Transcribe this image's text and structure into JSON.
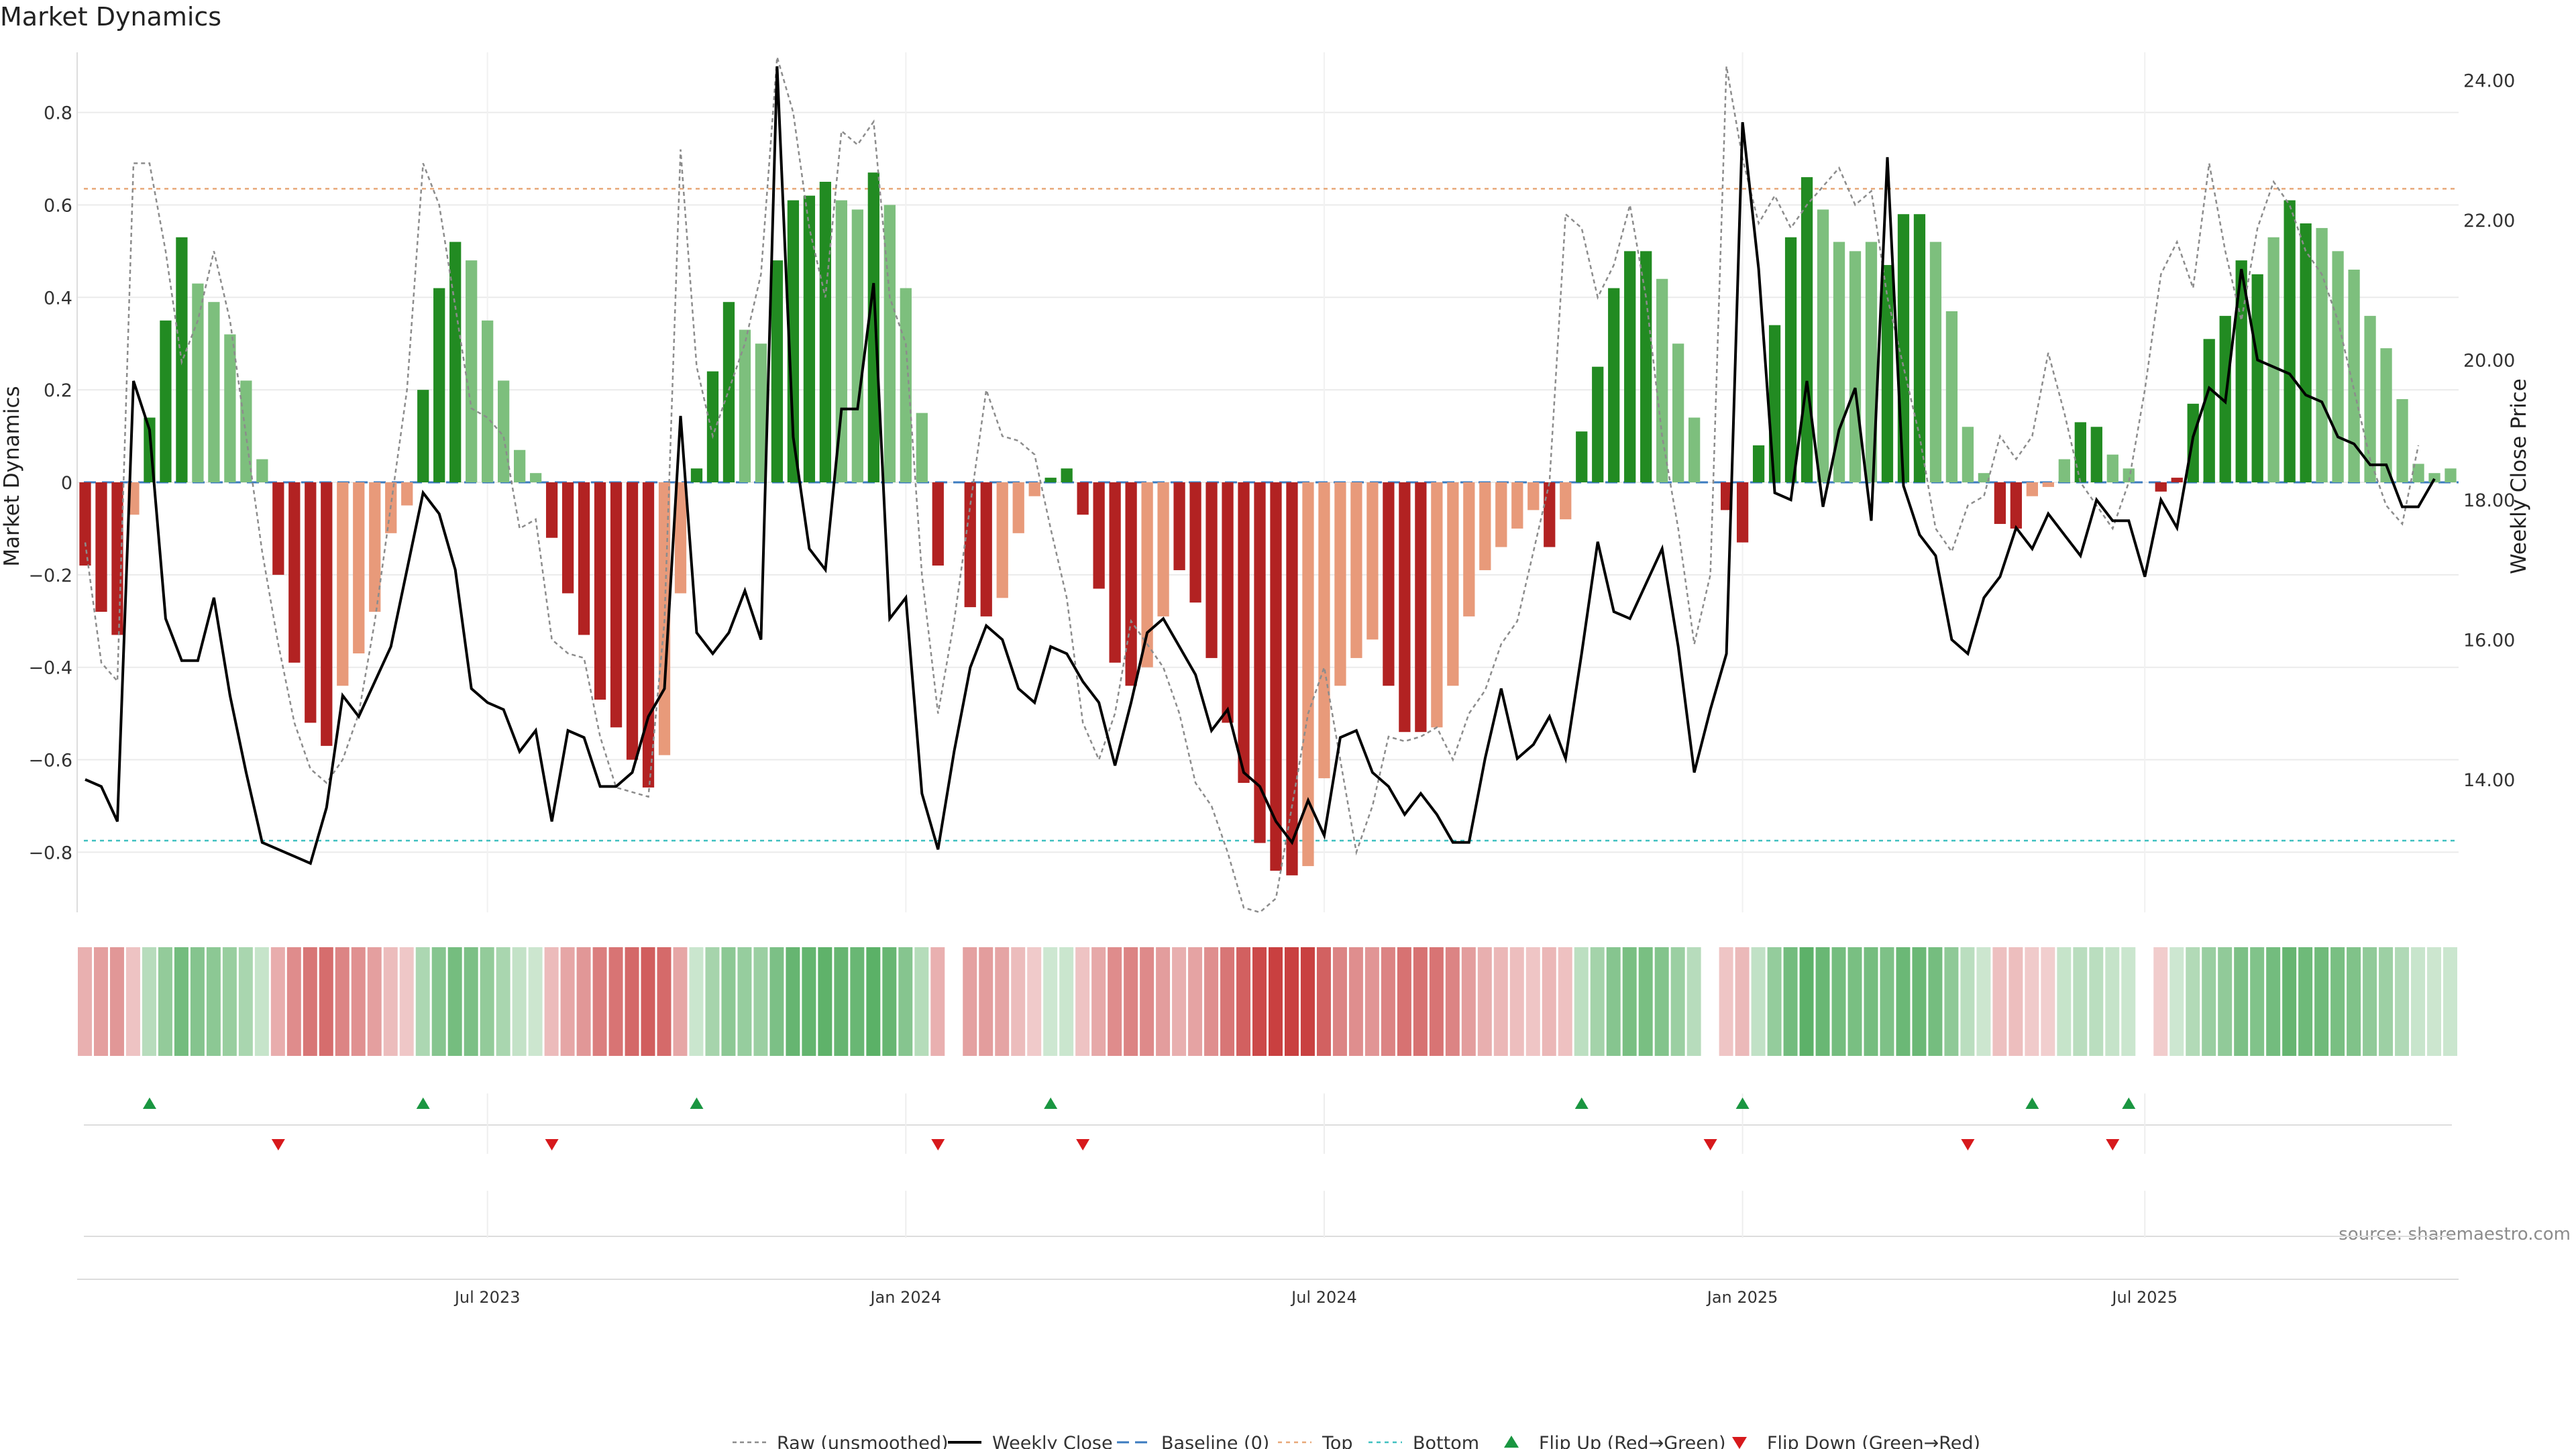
{
  "chart_data": {
    "type": "bar",
    "title": "Market Dynamics",
    "ylabel": "Market Dynamics",
    "y2label": "Weekly Close Price",
    "source": "source: sharemaestro.com",
    "ylim": [
      -0.93,
      0.93
    ],
    "y2lim": [
      12.1,
      24.4
    ],
    "yticks": [
      -0.8,
      -0.6,
      -0.4,
      -0.2,
      0,
      0.2,
      0.4,
      0.6,
      0.8
    ],
    "ytick_labels": [
      "−0.8",
      "−0.6",
      "−0.4",
      "−0.2",
      "0",
      "0.2",
      "0.4",
      "0.6",
      "0.8"
    ],
    "y2ticks": [
      14,
      16,
      18,
      20,
      22,
      24
    ],
    "y2tick_labels": [
      "14.00",
      "16.00",
      "18.00",
      "20.00",
      "22.00",
      "24.00"
    ],
    "xticks": [
      25,
      51,
      77,
      103,
      128
    ],
    "xtick_labels": [
      "Jul 2023",
      "Jan 2024",
      "Jul 2024",
      "Jan 2025",
      "Jul 2025"
    ],
    "top_level": 0.635,
    "bottom_level": -0.775,
    "grid": true,
    "legend_position": "bottom-center",
    "legend": [
      "Raw (unsmoothed)",
      "Weekly Close",
      "Baseline (0)",
      "Top",
      "Bottom",
      "Flip Up (Red→Green)",
      "Flip Down (Green→Red)"
    ],
    "colors": {
      "strong_green": "#228b22",
      "light_green": "#7dbf7d",
      "strong_red": "#b22222",
      "light_red": "#e89a7a",
      "raw": "#8c8c8c",
      "close": "#000000",
      "baseline": "#3b7bbf",
      "top": "#e8a878",
      "bottom": "#40c0c0",
      "flip_up": "#1a9641",
      "flip_down": "#d7191c"
    },
    "dynamics": [
      -0.18,
      -0.28,
      -0.33,
      -0.07,
      0.14,
      0.35,
      0.53,
      0.43,
      0.39,
      0.32,
      0.22,
      0.05,
      -0.2,
      -0.39,
      -0.52,
      -0.57,
      -0.44,
      -0.37,
      -0.28,
      -0.11,
      -0.05,
      0.2,
      0.42,
      0.52,
      0.48,
      0.35,
      0.22,
      0.07,
      0.02,
      -0.12,
      -0.24,
      -0.33,
      -0.47,
      -0.53,
      -0.6,
      -0.66,
      -0.59,
      -0.24,
      0.03,
      0.24,
      0.39,
      0.33,
      0.3,
      0.48,
      0.61,
      0.62,
      0.65,
      0.61,
      0.59,
      0.67,
      0.6,
      0.42,
      0.15,
      -0.18,
      0,
      -0.27,
      -0.29,
      -0.25,
      -0.11,
      -0.03,
      0.01,
      0.03,
      -0.07,
      -0.23,
      -0.39,
      -0.44,
      -0.4,
      -0.29,
      -0.19,
      -0.26,
      -0.38,
      -0.52,
      -0.65,
      -0.78,
      -0.84,
      -0.85,
      -0.83,
      -0.64,
      -0.44,
      -0.38,
      -0.34,
      -0.44,
      -0.54,
      -0.54,
      -0.53,
      -0.44,
      -0.29,
      -0.19,
      -0.14,
      -0.1,
      -0.06,
      -0.14,
      -0.08,
      0.11,
      0.25,
      0.42,
      0.5,
      0.5,
      0.44,
      0.3,
      0.14,
      0,
      -0.06,
      -0.13,
      0.08,
      0.34,
      0.53,
      0.66,
      0.59,
      0.52,
      0.5,
      0.52,
      0.47,
      0.58,
      0.58,
      0.52,
      0.37,
      0.12,
      0.02,
      -0.09,
      -0.1,
      -0.03,
      -0.01,
      0.05,
      0.13,
      0.12,
      0.06,
      0.03,
      0,
      -0.02,
      0.01,
      0.17,
      0.31,
      0.36,
      0.48,
      0.45,
      0.53,
      0.61,
      0.56,
      0.55,
      0.5,
      0.46,
      0.36,
      0.29,
      0.18,
      0.04,
      0.02,
      0.03
    ],
    "raw": [
      -0.13,
      -0.39,
      -0.43,
      0.69,
      0.69,
      0.5,
      0.26,
      0.35,
      0.5,
      0.35,
      0.1,
      -0.15,
      -0.35,
      -0.52,
      -0.62,
      -0.65,
      -0.6,
      -0.5,
      -0.3,
      -0.05,
      0.2,
      0.69,
      0.6,
      0.38,
      0.16,
      0.14,
      0.1,
      -0.1,
      -0.08,
      -0.34,
      -0.37,
      -0.38,
      -0.55,
      -0.66,
      -0.67,
      -0.68,
      -0.3,
      0.72,
      0.25,
      0.1,
      0.2,
      0.3,
      0.45,
      0.92,
      0.8,
      0.55,
      0.4,
      0.76,
      0.73,
      0.78,
      0.4,
      0.3,
      -0.2,
      -0.5,
      -0.3,
      -0.05,
      0.2,
      0.1,
      0.09,
      0.06,
      -0.1,
      -0.25,
      -0.52,
      -0.6,
      -0.5,
      -0.3,
      -0.35,
      -0.4,
      -0.5,
      -0.65,
      -0.7,
      -0.8,
      -0.92,
      -0.93,
      -0.9,
      -0.7,
      -0.5,
      -0.4,
      -0.6,
      -0.8,
      -0.7,
      -0.55,
      -0.56,
      -0.55,
      -0.53,
      -0.6,
      -0.5,
      -0.45,
      -0.35,
      -0.3,
      -0.15,
      0.0,
      0.58,
      0.55,
      0.4,
      0.47,
      0.6,
      0.4,
      0.1,
      -0.1,
      -0.35,
      -0.2,
      0.9,
      0.7,
      0.56,
      0.62,
      0.55,
      0.6,
      0.64,
      0.68,
      0.6,
      0.63,
      0.4,
      0.25,
      0.1,
      -0.1,
      -0.15,
      -0.05,
      -0.03,
      0.1,
      0.05,
      0.1,
      0.28,
      0.15,
      0.0,
      -0.05,
      -0.1,
      0.0,
      0.2,
      0.45,
      0.52,
      0.42,
      0.69,
      0.5,
      0.35,
      0.55,
      0.65,
      0.6,
      0.5,
      0.45,
      0.35,
      0.2,
      0.05,
      -0.05,
      -0.09,
      0.08
    ],
    "close": [
      14,
      13.9,
      13.4,
      19.7,
      19,
      16.3,
      15.7,
      15.7,
      16.6,
      15.2,
      14.1,
      13.1,
      13,
      12.9,
      12.8,
      13.6,
      15.2,
      14.9,
      15.4,
      15.9,
      17,
      18.1,
      17.8,
      17,
      15.3,
      15.1,
      15,
      14.4,
      14.7,
      13.4,
      14.7,
      14.6,
      13.9,
      13.9,
      14.1,
      14.9,
      15.3,
      19.2,
      16.1,
      15.8,
      16.1,
      16.7,
      16,
      24.2,
      18.9,
      17.3,
      17,
      19.3,
      19.3,
      21.1,
      16.3,
      16.6,
      13.8,
      13,
      14.4,
      15.6,
      16.2,
      16,
      15.3,
      15.1,
      15.9,
      15.8,
      15.4,
      15.1,
      14.2,
      15.1,
      16.1,
      16.3,
      15.9,
      15.5,
      14.7,
      15,
      14.1,
      13.9,
      13.4,
      13.1,
      13.7,
      13.2,
      14.6,
      14.7,
      14.1,
      13.9,
      13.5,
      13.8,
      13.5,
      13.1,
      13.1,
      14.3,
      15.3,
      14.3,
      14.5,
      14.9,
      14.3,
      15.8,
      17.4,
      16.4,
      16.3,
      16.8,
      17.3,
      15.9,
      14.1,
      15,
      15.8,
      23.4,
      21.3,
      18.1,
      18,
      19.7,
      17.9,
      19,
      19.6,
      17.7,
      22.9,
      18.2,
      17.5,
      17.2,
      16,
      15.8,
      16.6,
      16.9,
      17.6,
      17.3,
      17.8,
      17.5,
      17.2,
      18.0,
      17.7,
      17.7,
      16.9,
      18.0,
      17.6,
      18.9,
      19.6,
      19.4,
      21.3,
      20.0,
      19.9,
      19.8,
      19.5,
      19.4,
      18.9,
      18.8,
      18.5,
      18.5,
      17.9,
      17.9,
      18.3
    ],
    "bar_style": [
      "dr",
      "dr",
      "dr",
      "lr",
      "dg",
      "dg",
      "dg",
      "lg",
      "lg",
      "lg",
      "lg",
      "lg",
      "dr",
      "dr",
      "dr",
      "dr",
      "lr",
      "lr",
      "lr",
      "lr",
      "lr",
      "dg",
      "dg",
      "dg",
      "lg",
      "lg",
      "lg",
      "lg",
      "lg",
      "dr",
      "dr",
      "dr",
      "dr",
      "dr",
      "dr",
      "dr",
      "lr",
      "lr",
      "dg",
      "dg",
      "dg",
      "lg",
      "lg",
      "dg",
      "dg",
      "dg",
      "dg",
      "lg",
      "lg",
      "dg",
      "lg",
      "lg",
      "lg",
      "dr",
      "dr",
      "dr",
      "dr",
      "lr",
      "lr",
      "lr",
      "dg",
      "dg",
      "dr",
      "dr",
      "dr",
      "dr",
      "lr",
      "lr",
      "dr",
      "dr",
      "dr",
      "dr",
      "dr",
      "dr",
      "dr",
      "dr",
      "lr",
      "lr",
      "lr",
      "lr",
      "lr",
      "dr",
      "dr",
      "dr",
      "lr",
      "lr",
      "lr",
      "lr",
      "lr",
      "lr",
      "lr",
      "dr",
      "lr",
      "dg",
      "dg",
      "dg",
      "dg",
      "dg",
      "lg",
      "lg",
      "lg",
      "lg",
      "dr",
      "dr",
      "dg",
      "dg",
      "dg",
      "dg",
      "lg",
      "lg",
      "lg",
      "lg",
      "dg",
      "dg",
      "dg",
      "lg",
      "lg",
      "lg",
      "lg",
      "dr",
      "dr",
      "lr",
      "lr",
      "lg",
      "dg",
      "dg",
      "lg",
      "lg",
      "lg",
      "dr",
      "dr",
      "dg",
      "dg",
      "dg",
      "dg",
      "dg",
      "lg",
      "dg",
      "dg",
      "lg",
      "lg",
      "lg",
      "lg",
      "lg",
      "lg",
      "lg",
      "lg",
      "lg"
    ],
    "flip_up": [
      4,
      21,
      38,
      60,
      93,
      103,
      121,
      127
    ],
    "flip_down": [
      12,
      29,
      53,
      62,
      101,
      117,
      126
    ]
  }
}
